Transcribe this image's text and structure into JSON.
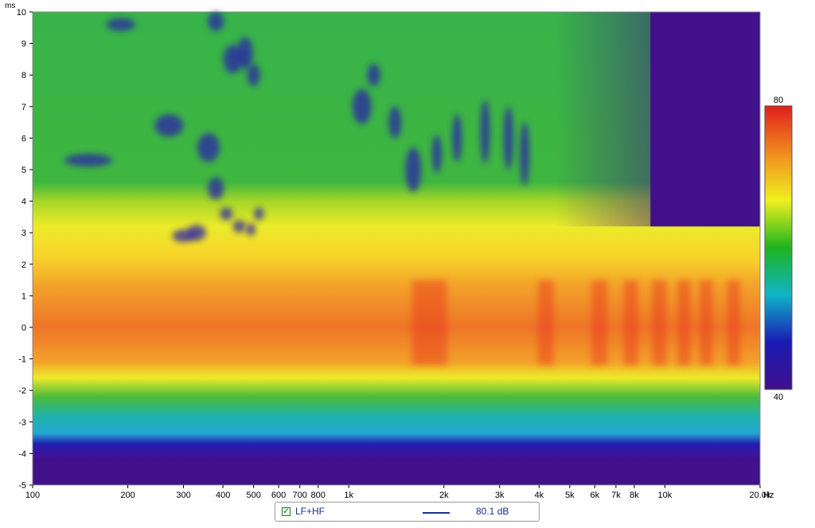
{
  "chart_data": {
    "type": "heatmap",
    "title": "",
    "x_axis": {
      "scale": "log",
      "range": [
        100,
        20000
      ],
      "unit": "Hz",
      "ticks": [
        {
          "value": 100,
          "label": "100"
        },
        {
          "value": 200,
          "label": "200"
        },
        {
          "value": 300,
          "label": "300"
        },
        {
          "value": 400,
          "label": "400"
        },
        {
          "value": 500,
          "label": "500"
        },
        {
          "value": 600,
          "label": "600"
        },
        {
          "value": 700,
          "label": "700"
        },
        {
          "value": 800,
          "label": "800"
        },
        {
          "value": 1000,
          "label": "1k"
        },
        {
          "value": 2000,
          "label": "2k"
        },
        {
          "value": 3000,
          "label": "3k"
        },
        {
          "value": 4000,
          "label": "4k"
        },
        {
          "value": 5000,
          "label": "5k"
        },
        {
          "value": 6000,
          "label": "6k"
        },
        {
          "value": 7000,
          "label": "7k"
        },
        {
          "value": 8000,
          "label": "8k"
        },
        {
          "value": 10000,
          "label": "10k"
        },
        {
          "value": 20000,
          "label": "20.0k"
        }
      ]
    },
    "y_axis": {
      "scale": "linear",
      "range": [
        -5,
        10
      ],
      "unit": "ms",
      "ticks": [
        {
          "value": 10,
          "label": "10"
        },
        {
          "value": 9,
          "label": "9"
        },
        {
          "value": 8,
          "label": "8"
        },
        {
          "value": 7,
          "label": "7"
        },
        {
          "value": 6,
          "label": "6"
        },
        {
          "value": 5,
          "label": "5"
        },
        {
          "value": 4,
          "label": "4"
        },
        {
          "value": 3,
          "label": "3"
        },
        {
          "value": 2,
          "label": "2"
        },
        {
          "value": 1,
          "label": "1"
        },
        {
          "value": 0,
          "label": "0"
        },
        {
          "value": -1,
          "label": "-1"
        },
        {
          "value": -2,
          "label": "-2"
        },
        {
          "value": -3,
          "label": "-3"
        },
        {
          "value": -4,
          "label": "-4"
        },
        {
          "value": -5,
          "label": "-5"
        }
      ]
    },
    "colorbar": {
      "min": 40,
      "max": 80,
      "min_label": "40",
      "max_label": "80",
      "colors": [
        "#41108a",
        "#1a1ab4",
        "#10b4c8",
        "#1eb41e",
        "#f0f01e",
        "#f08c1e",
        "#e11e1e"
      ]
    },
    "peak_time_ms": 0,
    "series": [
      {
        "name": "LF+HF",
        "value": "80.1 dB",
        "color": "#1d2f8a",
        "visible": true
      }
    ],
    "legend_position": "bottom-center"
  }
}
